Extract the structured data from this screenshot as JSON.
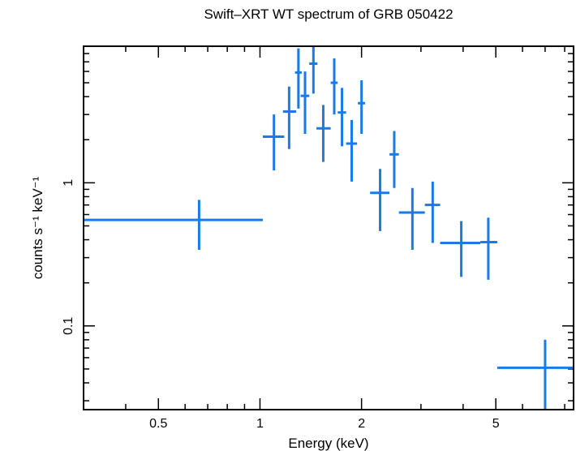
{
  "chart_data": {
    "type": "scatter",
    "title": "Swift–XRT WT spectrum of GRB 050422",
    "xlabel": "Energy (keV)",
    "ylabel": "counts s⁻¹ keV⁻¹",
    "xscale": "log",
    "yscale": "log",
    "xlim": [
      0.3,
      8.5
    ],
    "ylim": [
      0.026,
      9.0
    ],
    "x_ticks": [
      {
        "value": 0.5,
        "label": "0.5"
      },
      {
        "value": 1,
        "label": "1"
      },
      {
        "value": 2,
        "label": "2"
      },
      {
        "value": 5,
        "label": "5"
      }
    ],
    "y_ticks": [
      {
        "value": 0.1,
        "label": "0.1"
      },
      {
        "value": 1,
        "label": "1"
      }
    ],
    "error_bar_color": "#1a7ae6",
    "points": [
      {
        "x": 0.66,
        "xlo": 0.3,
        "xhi": 1.02,
        "y": 0.55,
        "ylo": 0.34,
        "yhi": 0.76
      },
      {
        "x": 1.1,
        "xlo": 1.02,
        "xhi": 1.18,
        "y": 2.1,
        "ylo": 1.22,
        "yhi": 3.0
      },
      {
        "x": 1.22,
        "xlo": 1.17,
        "xhi": 1.28,
        "y": 3.15,
        "ylo": 1.72,
        "yhi": 4.7
      },
      {
        "x": 1.3,
        "xlo": 1.27,
        "xhi": 1.33,
        "y": 5.9,
        "ylo": 3.3,
        "yhi": 8.7
      },
      {
        "x": 1.36,
        "xlo": 1.32,
        "xhi": 1.4,
        "y": 4.05,
        "ylo": 2.2,
        "yhi": 6.0
      },
      {
        "x": 1.44,
        "xlo": 1.4,
        "xhi": 1.48,
        "y": 6.8,
        "ylo": 4.2,
        "yhi": 9.0
      },
      {
        "x": 1.54,
        "xlo": 1.47,
        "xhi": 1.62,
        "y": 2.4,
        "ylo": 1.4,
        "yhi": 3.5
      },
      {
        "x": 1.66,
        "xlo": 1.62,
        "xhi": 1.7,
        "y": 5.0,
        "ylo": 3.0,
        "yhi": 7.4
      },
      {
        "x": 1.75,
        "xlo": 1.7,
        "xhi": 1.8,
        "y": 3.1,
        "ylo": 1.8,
        "yhi": 4.6
      },
      {
        "x": 1.87,
        "xlo": 1.8,
        "xhi": 1.94,
        "y": 1.88,
        "ylo": 1.02,
        "yhi": 2.75
      },
      {
        "x": 2.0,
        "xlo": 1.95,
        "xhi": 2.05,
        "y": 3.6,
        "ylo": 2.2,
        "yhi": 5.2
      },
      {
        "x": 2.27,
        "xlo": 2.12,
        "xhi": 2.42,
        "y": 0.85,
        "ylo": 0.46,
        "yhi": 1.25
      },
      {
        "x": 2.5,
        "xlo": 2.42,
        "xhi": 2.58,
        "y": 1.58,
        "ylo": 0.92,
        "yhi": 2.3
      },
      {
        "x": 2.83,
        "xlo": 2.58,
        "xhi": 3.08,
        "y": 0.62,
        "ylo": 0.34,
        "yhi": 0.92
      },
      {
        "x": 3.25,
        "xlo": 3.08,
        "xhi": 3.42,
        "y": 0.7,
        "ylo": 0.38,
        "yhi": 1.02
      },
      {
        "x": 3.95,
        "xlo": 3.42,
        "xhi": 4.5,
        "y": 0.38,
        "ylo": 0.22,
        "yhi": 0.54
      },
      {
        "x": 4.75,
        "xlo": 4.5,
        "xhi": 5.05,
        "y": 0.385,
        "ylo": 0.21,
        "yhi": 0.57
      },
      {
        "x": 7.0,
        "xlo": 5.05,
        "xhi": 8.5,
        "y": 0.051,
        "ylo": 0.026,
        "yhi": 0.08
      }
    ]
  }
}
